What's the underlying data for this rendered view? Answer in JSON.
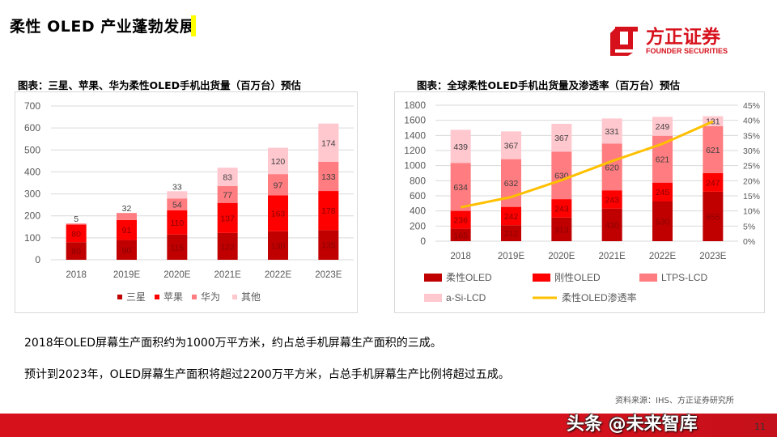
{
  "header": {
    "title": "柔性 OLED 产业蓬勃发展",
    "accent": "#ffff00"
  },
  "logo": {
    "cn": "方正证券",
    "en": "FOUNDER SECURITIES",
    "color": "#d7111c"
  },
  "colors": {
    "c1": "#c00000",
    "c2": "#ff0000",
    "c3": "#ff7c80",
    "c4": "#ffc7ce",
    "line": "#ffc000"
  },
  "chart_data": [
    {
      "type": "bar",
      "stacked": true,
      "title": "图表：三星、苹果、华为柔性OLED手机出货量（百万台）预估",
      "categories": [
        "2018",
        "2019E",
        "2020E",
        "2021E",
        "2022E",
        "2023E"
      ],
      "ylim": [
        0,
        700
      ],
      "yticks": [
        "0",
        "100",
        "200",
        "300",
        "400",
        "500",
        "600",
        "700"
      ],
      "grid": true,
      "legend_position": "bottom",
      "series": [
        {
          "name": "三星",
          "values": [
            80,
            90,
            115,
            122,
            130,
            135
          ]
        },
        {
          "name": "苹果",
          "values": [
            80,
            91,
            110,
            137,
            163,
            178
          ]
        },
        {
          "name": "华为",
          "values": [
            5,
            32,
            54,
            77,
            97,
            133
          ]
        },
        {
          "name": "其他",
          "values": [
            null,
            null,
            33,
            83,
            120,
            174
          ]
        }
      ]
    },
    {
      "type": "bar",
      "stacked": true,
      "title": "图表：全球柔性OLED手机出货量及渗透率（百万台）预估",
      "categories": [
        "2018",
        "2019E",
        "2020E",
        "2021E",
        "2022E",
        "2023E"
      ],
      "ylim": [
        0,
        1800
      ],
      "yticks": [
        "0",
        "200",
        "400",
        "600",
        "800",
        "1000",
        "1200",
        "1400",
        "1600",
        "1800"
      ],
      "y2lim": [
        0,
        45
      ],
      "y2ticks": [
        "0%",
        "5%",
        "10%",
        "15%",
        "20%",
        "25%",
        "30%",
        "35%",
        "40%",
        "45%"
      ],
      "grid": true,
      "legend_position": "bottom",
      "series": [
        {
          "name": "柔性OLED",
          "values": [
            165,
            212,
            313,
            430,
            530,
            655
          ]
        },
        {
          "name": "刚性OLED",
          "values": [
            236,
            242,
            243,
            243,
            245,
            247
          ]
        },
        {
          "name": "LTPS-LCD",
          "values": [
            634,
            632,
            630,
            620,
            621,
            621
          ]
        },
        {
          "name": "a-Si-LCD",
          "values": [
            439,
            367,
            367,
            331,
            249,
            131
          ]
        }
      ],
      "line_series": {
        "name": "柔性OLED渗透率",
        "axis": "right",
        "values": [
          11.2,
          14.6,
          20.2,
          26.5,
          32.2,
          39.6
        ]
      }
    }
  ],
  "paragraphs": [
    "2018年OLED屏幕生产面积约为1000万平方米，约占总手机屏幕生产面积的三成。",
    "预计到2023年，OLED屏幕生产面积将超过2200万平方米，占总手机屏幕生产比例将超过五成。"
  ],
  "footer": {
    "source": "资料来源：IHS、方正证券研究所",
    "page": "11",
    "watermark": "头条 @未来智库"
  }
}
